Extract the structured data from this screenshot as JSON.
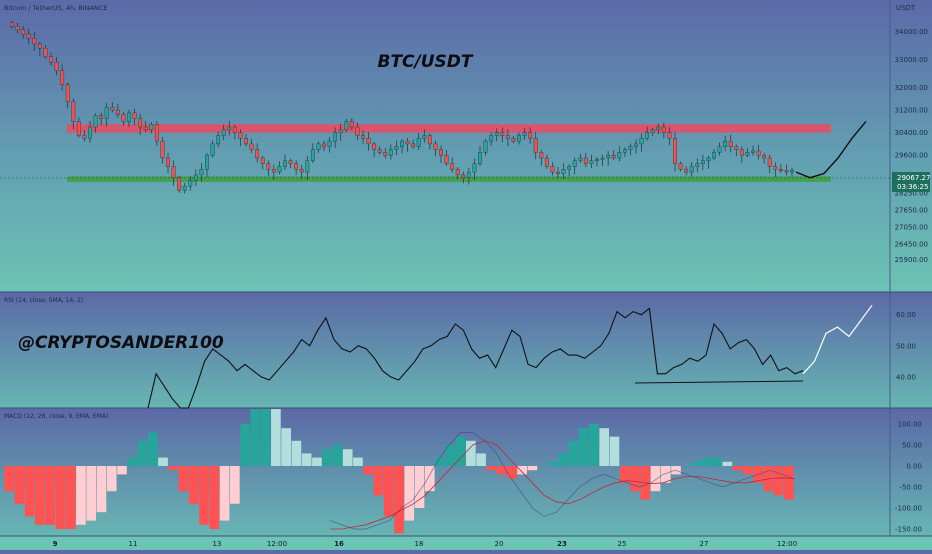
{
  "chart_data": {
    "type": "candlestick",
    "symbol_line": "Bitcoin / TetherUS, 4h, BINANCE",
    "title": "BTC/USDT",
    "watermark": "@CRYPTOSANDER100",
    "price_axis_label": "USDT",
    "price_ticks": [
      "34000.00",
      "33000.00",
      "32000.00",
      "31200.00",
      "30400.00",
      "29600.00",
      "28250.00",
      "27650.00",
      "27050.00",
      "26450.00",
      "25900.00"
    ],
    "current_price": "29067.27",
    "countdown": "03:36:25",
    "resistance_zone": [
      30400,
      30700
    ],
    "support_zone": [
      28650,
      28850
    ],
    "x_labels": [
      "9",
      "11",
      "13",
      "12:00",
      "16",
      "18",
      "20",
      "23",
      "25",
      "27",
      "12:00"
    ],
    "colors": {
      "up": "#26a69a",
      "down": "#ef5350",
      "resistance": "#ef4a63",
      "support": "#43a047",
      "background_top": "#5b6aa8",
      "background_bottom": "#6cc3b4"
    },
    "candles_close": [
      34180,
      34050,
      33900,
      33750,
      33550,
      33400,
      33100,
      32900,
      32600,
      32100,
      31500,
      30800,
      30300,
      30200,
      30600,
      31000,
      30900,
      31300,
      31200,
      31050,
      30800,
      31100,
      30900,
      30600,
      30500,
      30700,
      30100,
      29500,
      29200,
      28800,
      28350,
      28500,
      28700,
      28900,
      29100,
      29600,
      30000,
      30300,
      30500,
      30600,
      30400,
      30200,
      30000,
      29800,
      29500,
      29300,
      29100,
      29000,
      29200,
      29400,
      29300,
      29100,
      29000,
      29400,
      29800,
      30000,
      29900,
      30100,
      30400,
      30500,
      30800,
      30600,
      30300,
      30200,
      30000,
      29800,
      29700,
      29600,
      29800,
      29900,
      30100,
      30000,
      29900,
      30200,
      30300,
      30000,
      29800,
      29600,
      29300,
      29100,
      28900,
      28800,
      29000,
      29300,
      29700,
      30100,
      30300,
      30400,
      30300,
      30200,
      30100,
      30300,
      30400,
      30200,
      29700,
      29500,
      29200,
      29000,
      28950,
      29100,
      29200,
      29400,
      29500,
      29300,
      29400,
      29450,
      29500,
      29600,
      29500,
      29700,
      29800,
      29900,
      30000,
      30200,
      30400,
      30500,
      30600,
      30400,
      30200,
      29300,
      29100,
      29000,
      29200,
      29300,
      29400,
      29500,
      29700,
      29900,
      30100,
      29900,
      29800,
      29600,
      29700,
      29750,
      29600,
      29500,
      29200,
      29100,
      29050,
      29000,
      29067.27
    ],
    "projection": [
      29000,
      28800,
      28950,
      29500,
      30200,
      30800
    ],
    "rsi": {
      "label": "RSI (14, close, SMA, 14, 2)",
      "ticks": [
        "60.00",
        "50.00",
        "40.00"
      ],
      "values": [
        30,
        41,
        37,
        33,
        29,
        30,
        37,
        45,
        49,
        47,
        45,
        42,
        44,
        42,
        40,
        39,
        42,
        45,
        48,
        52,
        50,
        55,
        59,
        52,
        49,
        48,
        50,
        49,
        46,
        42,
        40,
        39,
        42,
        45,
        49,
        50,
        52,
        53,
        57,
        55,
        49,
        46,
        47,
        43,
        49,
        55,
        53,
        44,
        43,
        46,
        48,
        49,
        47,
        47,
        46,
        48,
        50,
        54,
        61,
        59,
        61,
        60,
        62,
        41,
        41,
        43,
        44,
        46,
        45,
        47,
        57,
        54,
        49,
        51,
        52,
        49,
        44,
        47,
        42,
        43,
        41,
        42
      ],
      "trendline": [
        40.5,
        41.5
      ],
      "projection": [
        41,
        45,
        54,
        56,
        53,
        58,
        63
      ]
    },
    "macd": {
      "label": "MACD (12, 26, close, 9, EMA, EMA)",
      "ticks": [
        "100.00",
        "50.00",
        "0.00",
        "-50.00",
        "-100.00",
        "-150.00"
      ],
      "histogram": [
        -60,
        -90,
        -120,
        -140,
        -140,
        -150,
        -150,
        -140,
        -130,
        -110,
        -60,
        -20,
        20,
        60,
        80,
        20,
        -10,
        -60,
        -90,
        -140,
        -150,
        -130,
        -90,
        100,
        160,
        170,
        140,
        90,
        60,
        30,
        20,
        40,
        50,
        40,
        20,
        -20,
        -70,
        -120,
        -160,
        -130,
        -100,
        -60,
        20,
        50,
        70,
        60,
        30,
        -10,
        -20,
        -30,
        -20,
        -10,
        0,
        10,
        30,
        60,
        90,
        100,
        90,
        70,
        -40,
        -60,
        -80,
        -60,
        -40,
        -20,
        0,
        10,
        20,
        20,
        10,
        -10,
        -20,
        -40,
        -60,
        -70,
        -80
      ],
      "macd_line": [
        -130,
        -140,
        -150,
        -150,
        -140,
        -130,
        -100,
        -80,
        -40,
        10,
        50,
        80,
        80,
        60,
        30,
        -20,
        -60,
        -100,
        -120,
        -110,
        -80,
        -50,
        -30,
        -20,
        -30,
        -40,
        -50,
        -40,
        -20,
        -10,
        -20,
        -30,
        -40,
        -50,
        -40,
        -30,
        -20,
        -10,
        -20,
        -30
      ],
      "signal_line": [
        -150,
        -150,
        -145,
        -140,
        -130,
        -120,
        -105,
        -90,
        -70,
        -40,
        -10,
        20,
        50,
        60,
        50,
        20,
        -10,
        -40,
        -70,
        -85,
        -90,
        -80,
        -65,
        -50,
        -40,
        -35,
        -38,
        -42,
        -40,
        -30,
        -25,
        -25,
        -30,
        -35,
        -40,
        -40,
        -35,
        -30,
        -28,
        -30
      ]
    }
  }
}
